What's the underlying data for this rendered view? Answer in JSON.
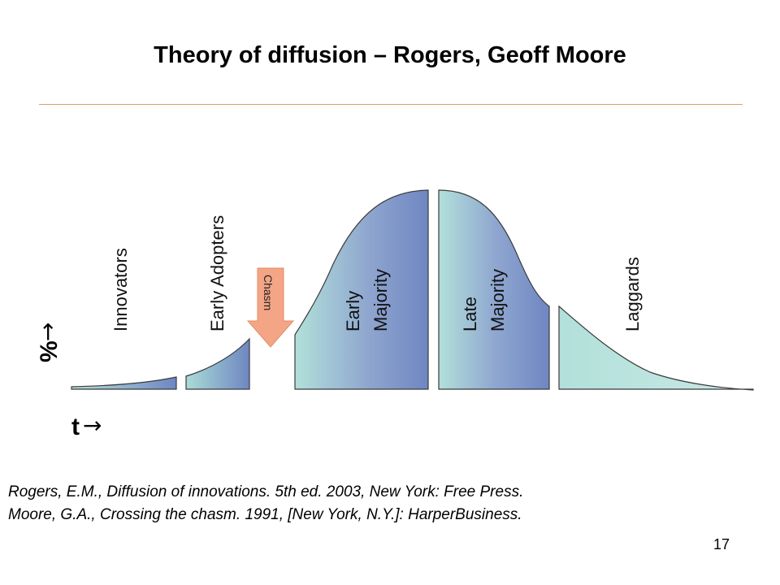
{
  "title": "Theory of diffusion – Rogers, Geoff Moore",
  "segments": [
    {
      "label": "Innovators"
    },
    {
      "label": "Early Adopters"
    },
    {
      "label_line1": "Early",
      "label_line2": "Majority"
    },
    {
      "label_line1": "Late",
      "label_line2": "Majority"
    },
    {
      "label": "Laggards"
    }
  ],
  "chasm": {
    "label": "Chasm"
  },
  "axes": {
    "y_label": "%",
    "x_label": "t",
    "arrow": "→"
  },
  "references": [
    "Rogers, E.M., Diffusion of innovations. 5th ed. 2003, New York: Free Press.",
    "Moore, G.A., Crossing the chasm. 1991, [New York, N.Y.]: HarperBusiness."
  ],
  "page_number": "17",
  "colors": {
    "gradient_light": "#b2e0da",
    "gradient_dark": "#6f86c2",
    "chasm_arrow": "#f4a585",
    "rule": "#d9a066"
  }
}
